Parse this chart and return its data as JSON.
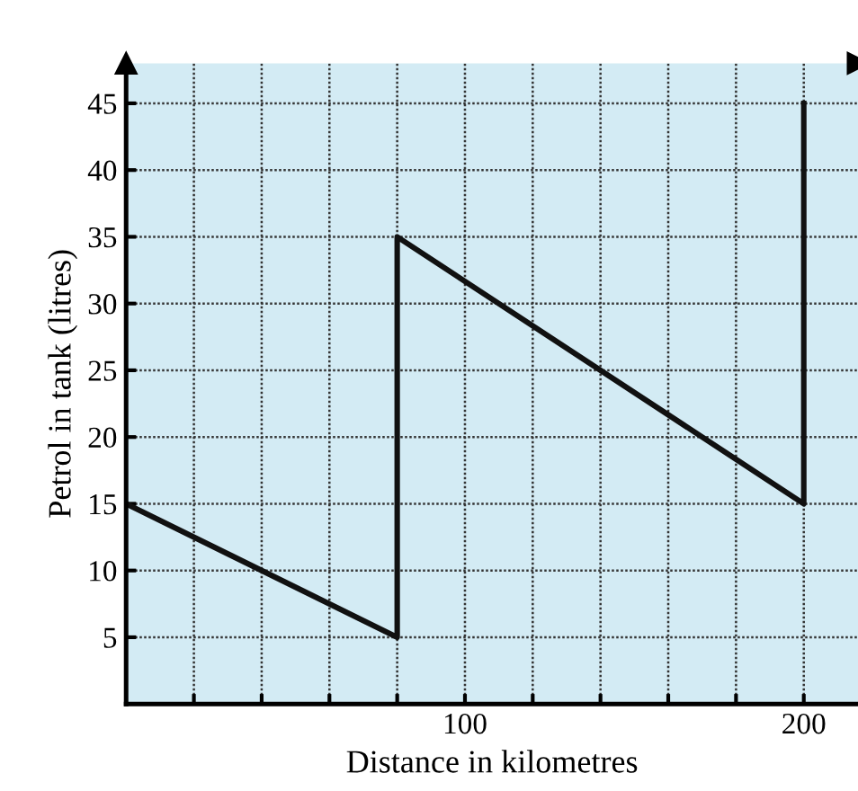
{
  "chart_data": {
    "type": "line",
    "xlabel": "Distance in kilometres",
    "ylabel": "Petrol in tank (litres)",
    "x": [
      0,
      80,
      80,
      200,
      200
    ],
    "series": [
      {
        "color": "#111111",
        "values": [
          15,
          5,
          35,
          15,
          45
        ]
      }
    ],
    "xlim": [
      0,
      216
    ],
    "ylim": [
      0,
      48
    ],
    "xticks": [
      {
        "value": 20,
        "label": null
      },
      {
        "value": 40,
        "label": null
      },
      {
        "value": 60,
        "label": null
      },
      {
        "value": 80,
        "label": null
      },
      100,
      {
        "value": 120,
        "label": null
      },
      {
        "value": 140,
        "label": null
      },
      {
        "value": 160,
        "label": null
      },
      {
        "value": 180,
        "label": null
      },
      200
    ],
    "yticks": [
      5,
      10,
      15,
      20,
      25,
      30,
      35,
      40,
      45
    ],
    "grid": true,
    "marker": "none",
    "line_style": "solid"
  }
}
